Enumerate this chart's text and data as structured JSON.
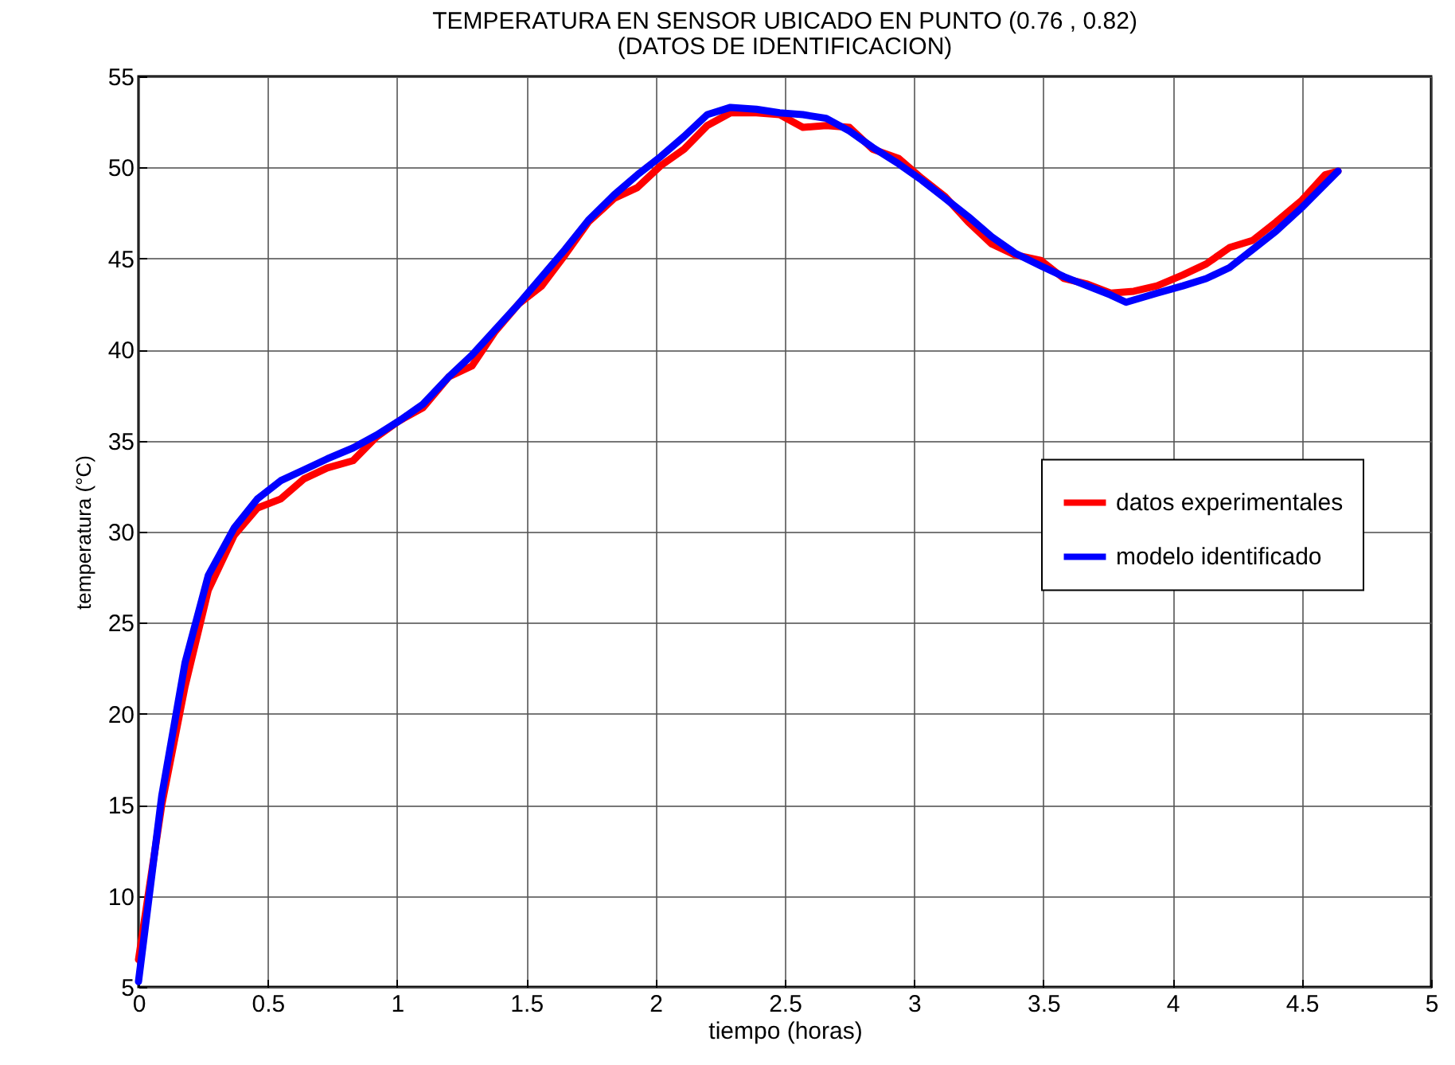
{
  "chart_data": {
    "type": "line",
    "title": "TEMPERATURA EN SENSOR UBICADO EN PUNTO (0.76 , 0.82)",
    "subtitle": "(DATOS DE IDENTIFICACION)",
    "xlabel": "tiempo (horas)",
    "ylabel": "temperatura (°C)",
    "xlim": [
      0,
      5
    ],
    "ylim": [
      5,
      55
    ],
    "xticks": [
      0,
      0.5,
      1,
      1.5,
      2,
      2.5,
      3,
      3.5,
      4,
      4.5,
      5
    ],
    "yticks": [
      5,
      10,
      15,
      20,
      25,
      30,
      35,
      40,
      45,
      50,
      55
    ],
    "grid": true,
    "legend": "right",
    "line_style": "solid",
    "series": [
      {
        "name": "datos experimentales",
        "color": "#ff0000",
        "x": [
          0,
          0.09,
          0.18,
          0.27,
          0.37,
          0.46,
          0.55,
          0.64,
          0.73,
          0.83,
          0.92,
          1.01,
          1.1,
          1.2,
          1.29,
          1.38,
          1.47,
          1.56,
          1.65,
          1.74,
          1.84,
          1.93,
          2.02,
          2.11,
          2.2,
          2.29,
          2.39,
          2.48,
          2.57,
          2.66,
          2.75,
          2.84,
          2.94,
          3.03,
          3.12,
          3.21,
          3.3,
          3.39,
          3.49,
          3.58,
          3.67,
          3.76,
          3.85,
          3.94,
          4.04,
          4.13,
          4.22,
          4.31,
          4.4,
          4.5,
          4.59,
          4.64
        ],
        "values": [
          6.5,
          15,
          21.5,
          26.8,
          29.8,
          31.3,
          31.8,
          32.9,
          33.5,
          33.9,
          35.2,
          36.1,
          36.8,
          38.5,
          39.1,
          41,
          42.5,
          43.5,
          45.2,
          47,
          48.3,
          48.9,
          50.1,
          51,
          52.3,
          53,
          53,
          52.9,
          52.2,
          52.3,
          52.2,
          51,
          50.5,
          49.4,
          48.4,
          47,
          45.8,
          45.2,
          44.9,
          43.9,
          43.6,
          43.1,
          43.2,
          43.5,
          44.1,
          44.7,
          45.6,
          46,
          47,
          48.2,
          49.6,
          49.8
        ]
      },
      {
        "name": "modelo identificado",
        "color": "#0000ff",
        "x": [
          0,
          0.09,
          0.18,
          0.27,
          0.37,
          0.46,
          0.55,
          0.64,
          0.73,
          0.83,
          0.92,
          1.01,
          1.1,
          1.2,
          1.29,
          1.38,
          1.47,
          1.56,
          1.65,
          1.74,
          1.84,
          1.93,
          2.02,
          2.11,
          2.2,
          2.29,
          2.39,
          2.48,
          2.57,
          2.66,
          2.75,
          2.84,
          2.94,
          3.03,
          3.12,
          3.21,
          3.3,
          3.39,
          3.49,
          3.58,
          3.67,
          3.76,
          3.82,
          3.94,
          4.04,
          4.13,
          4.22,
          4.31,
          4.4,
          4.5,
          4.64
        ],
        "values": [
          5.3,
          15.5,
          22.8,
          27.6,
          30.2,
          31.8,
          32.8,
          33.4,
          34,
          34.6,
          35.3,
          36.1,
          37,
          38.5,
          39.7,
          41.1,
          42.5,
          44,
          45.5,
          47.1,
          48.5,
          49.6,
          50.6,
          51.7,
          52.9,
          53.3,
          53.2,
          53,
          52.9,
          52.7,
          52,
          51.1,
          50.2,
          49.3,
          48.3,
          47.3,
          46.2,
          45.3,
          44.6,
          44,
          43.5,
          43,
          42.6,
          43.1,
          43.5,
          43.9,
          44.5,
          45.5,
          46.5,
          47.8,
          49.8
        ]
      }
    ]
  }
}
